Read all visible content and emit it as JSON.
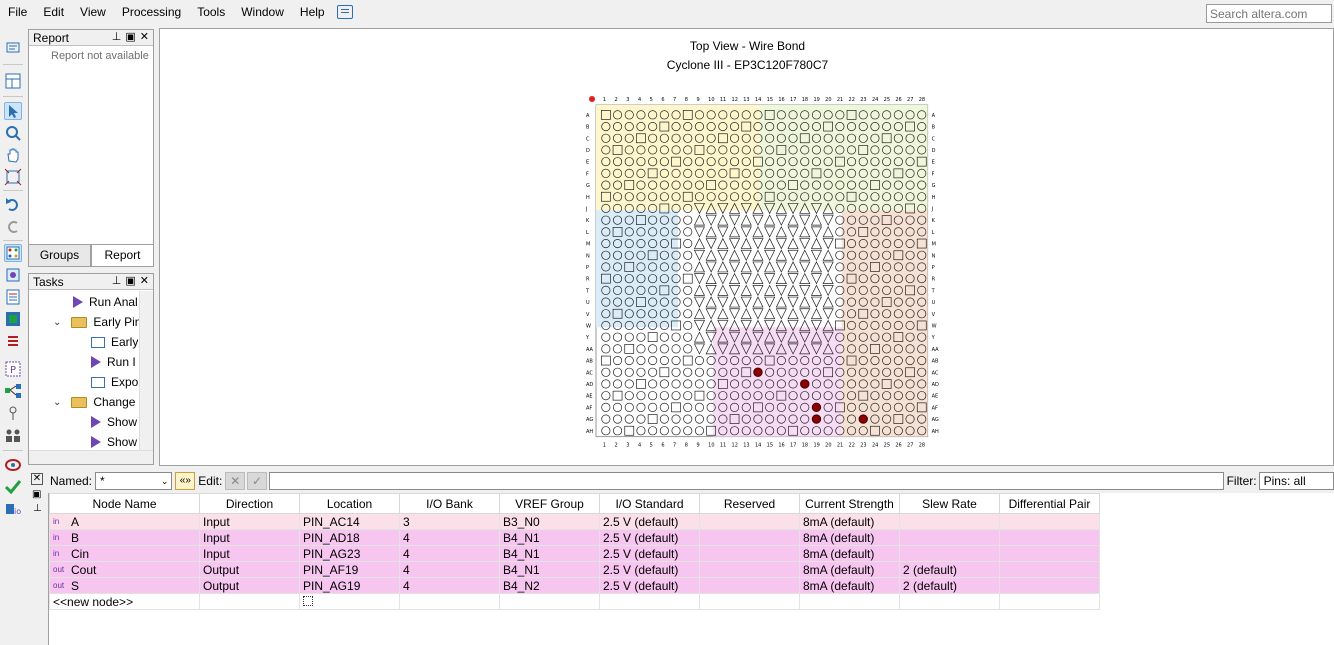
{
  "menu": [
    "File",
    "Edit",
    "View",
    "Processing",
    "Tools",
    "Window",
    "Help"
  ],
  "search": {
    "placeholder": "Search altera.com"
  },
  "report_panel": {
    "title": "Report",
    "empty_text": "Report not available"
  },
  "tabs": [
    "Groups",
    "Report"
  ],
  "tasks_panel": {
    "title": "Tasks",
    "items": [
      {
        "label": "Run Anal",
        "kind": "run",
        "indent": 2
      },
      {
        "label": "Early Pin",
        "kind": "folder",
        "indent": 1
      },
      {
        "label": "Early",
        "kind": "doc",
        "indent": 3
      },
      {
        "label": "Run I",
        "kind": "run",
        "indent": 3
      },
      {
        "label": "Expo",
        "kind": "doc",
        "indent": 3
      },
      {
        "label": "Change V",
        "kind": "folder",
        "indent": 1
      },
      {
        "label": "Show",
        "kind": "run",
        "indent": 3
      },
      {
        "label": "Show",
        "kind": "run",
        "indent": 3
      }
    ]
  },
  "chip": {
    "title_line1": "Top View - Wire Bond",
    "title_line2": "Cyclone III - EP3C120F780C7",
    "columns": [
      "1",
      "2",
      "3",
      "4",
      "5",
      "6",
      "7",
      "8",
      "9",
      "10",
      "11",
      "12",
      "13",
      "14",
      "15",
      "16",
      "17",
      "18",
      "19",
      "20",
      "21",
      "22",
      "23",
      "24",
      "25",
      "26",
      "27",
      "28"
    ],
    "rows": [
      "A",
      "B",
      "C",
      "D",
      "E",
      "F",
      "G",
      "H",
      "J",
      "K",
      "L",
      "M",
      "N",
      "P",
      "R",
      "T",
      "U",
      "V",
      "W",
      "Y",
      "AA",
      "AB",
      "AC",
      "AD",
      "AE",
      "AF",
      "AG",
      "AH"
    ],
    "colors": {
      "bank1": "#d9ecf7",
      "bank2": "#fff6cc",
      "bank3": "#eef7d9",
      "bank4": "#f7dcf5",
      "bank5": "#f6e2d4",
      "assigned": "#8b0000"
    }
  },
  "filter_bar": {
    "named_label": "Named:",
    "named_value": "*",
    "edit_label": "Edit:",
    "filter_label": "Filter:",
    "filter_value": "Pins: all"
  },
  "table": {
    "headers": [
      "Node Name",
      "Direction",
      "Location",
      "I/O Bank",
      "VREF Group",
      "I/O Standard",
      "Reserved",
      "Current Strength",
      "Slew Rate",
      "Differential Pair"
    ],
    "rows": [
      {
        "dir_icon": "in",
        "name": "A",
        "direction": "Input",
        "location": "PIN_AC14",
        "bank": "3",
        "vref": "B3_N0",
        "standard": "2.5 V (default)",
        "reserved": "",
        "current": "8mA (default)",
        "slew": "",
        "diff": ""
      },
      {
        "dir_icon": "in",
        "name": "B",
        "direction": "Input",
        "location": "PIN_AD18",
        "bank": "4",
        "vref": "B4_N1",
        "standard": "2.5 V (default)",
        "reserved": "",
        "current": "8mA (default)",
        "slew": "",
        "diff": ""
      },
      {
        "dir_icon": "in",
        "name": "Cin",
        "direction": "Input",
        "location": "PIN_AG23",
        "bank": "4",
        "vref": "B4_N1",
        "standard": "2.5 V (default)",
        "reserved": "",
        "current": "8mA (default)",
        "slew": "",
        "diff": ""
      },
      {
        "dir_icon": "out",
        "name": "Cout",
        "direction": "Output",
        "location": "PIN_AF19",
        "bank": "4",
        "vref": "B4_N1",
        "standard": "2.5 V (default)",
        "reserved": "",
        "current": "8mA (default)",
        "slew": "2 (default)",
        "diff": ""
      },
      {
        "dir_icon": "out",
        "name": "S",
        "direction": "Output",
        "location": "PIN_AG19",
        "bank": "4",
        "vref": "B4_N2",
        "standard": "2.5 V (default)",
        "reserved": "",
        "current": "8mA (default)",
        "slew": "2 (default)",
        "diff": ""
      }
    ],
    "new_node": "<<new node>>"
  }
}
